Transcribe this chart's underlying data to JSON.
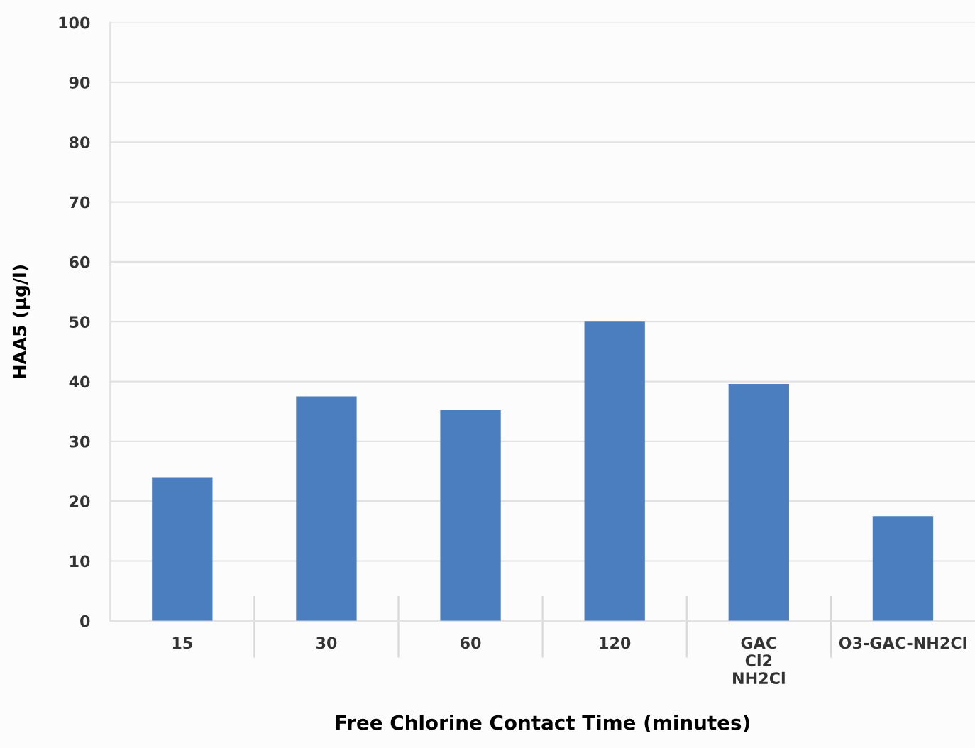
{
  "chart_data": {
    "type": "bar",
    "xlabel": "Free Chlorine Contact Time (minutes)",
    "ylabel": "HAA5 (µg/l)",
    "categories": [
      "15",
      "30",
      "60",
      "120",
      "GAC\nCl2\nNH2Cl",
      "O3-GAC-NH2Cl"
    ],
    "values": [
      24,
      37.5,
      35.2,
      50,
      39.6,
      17.5
    ],
    "color": "#4a7ebf",
    "ylim": [
      0,
      100
    ],
    "yticks": [
      0,
      10,
      20,
      30,
      40,
      50,
      60,
      70,
      80,
      90,
      100
    ],
    "grid": "y"
  }
}
